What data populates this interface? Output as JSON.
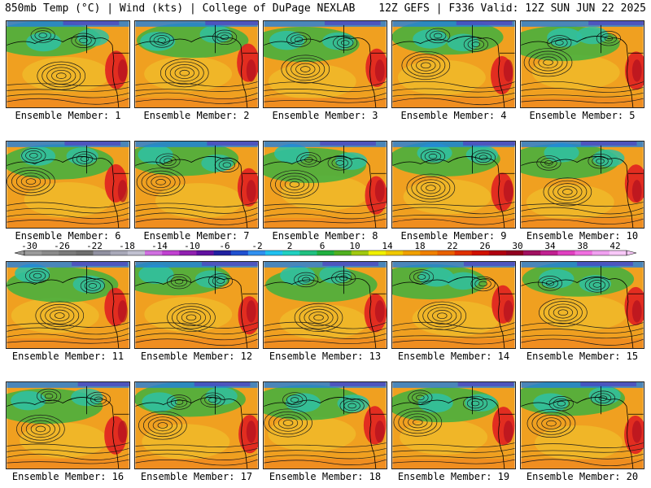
{
  "header": {
    "left": "850mb Temp (°C) | Wind (kts) | College of DuPage NEXLAB",
    "right": "12Z GEFS | F336 Valid: 12Z SUN JUN 22 2025"
  },
  "panels": [
    {
      "label": "Ensemble Member: 1"
    },
    {
      "label": "Ensemble Member: 2"
    },
    {
      "label": "Ensemble Member: 3"
    },
    {
      "label": "Ensemble Member: 4"
    },
    {
      "label": "Ensemble Member: 5"
    },
    {
      "label": "Ensemble Member: 6"
    },
    {
      "label": "Ensemble Member: 7"
    },
    {
      "label": "Ensemble Member: 8"
    },
    {
      "label": "Ensemble Member: 9"
    },
    {
      "label": "Ensemble Member: 10"
    },
    {
      "label": "Ensemble Member: 11"
    },
    {
      "label": "Ensemble Member: 12"
    },
    {
      "label": "Ensemble Member: 13"
    },
    {
      "label": "Ensemble Member: 14"
    },
    {
      "label": "Ensemble Member: 15"
    },
    {
      "label": "Ensemble Member: 16"
    },
    {
      "label": "Ensemble Member: 17"
    },
    {
      "label": "Ensemble Member: 18"
    },
    {
      "label": "Ensemble Member: 19"
    },
    {
      "label": "Ensemble Member: 20"
    }
  ],
  "colorbar": {
    "ticks": [
      "-30",
      "-26",
      "-22",
      "-18",
      "-14",
      "-10",
      "-6",
      "-2",
      "2",
      "6",
      "10",
      "14",
      "18",
      "22",
      "26",
      "30",
      "34",
      "38",
      "42"
    ],
    "colors": [
      "#9a9a9a",
      "#8a8a8a",
      "#7a7a7a",
      "#6e6e6e",
      "#9090a0",
      "#a8a8b8",
      "#c0c0d0",
      "#d070e0",
      "#c040d0",
      "#9020b0",
      "#6010a0",
      "#2020a0",
      "#2050d0",
      "#3090f0",
      "#20c0f0",
      "#20d0c0",
      "#20c080",
      "#20b040",
      "#50b020",
      "#a0c810",
      "#f0f000",
      "#f0c800",
      "#f0a000",
      "#f08000",
      "#e86000",
      "#e03000",
      "#d01000",
      "#b00010",
      "#900020",
      "#a01060",
      "#c02090",
      "#e040c0",
      "#f070e0",
      "#f0a0f0",
      "#f8c8f8"
    ]
  },
  "fields": {
    "warm": "#f0a020",
    "cool": "#30c0a0",
    "green": "#40b040",
    "cold": "#2080e0",
    "hot": "#e02020"
  }
}
